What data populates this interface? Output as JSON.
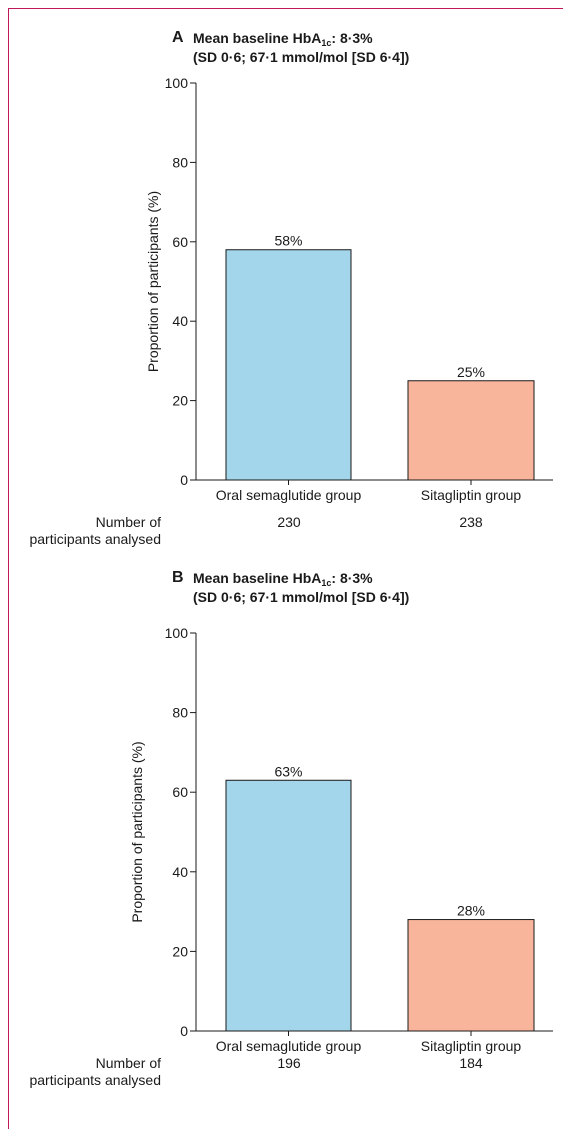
{
  "chart_data": [
    {
      "type": "bar",
      "panel_letter": "A",
      "title_prefix": "Mean baseline HbA",
      "title_sub": "1c",
      "title_suffix": ": 8·3%",
      "subtitle": "(SD 0·6; 67·1 mmol/mol [SD 6·4])",
      "ylabel": "Proportion of participants (%)",
      "ylim": [
        0,
        100
      ],
      "yticks": [
        0,
        20,
        40,
        60,
        80,
        100
      ],
      "categories": [
        "Oral semaglutide group",
        "Sitagliptin group"
      ],
      "values": [
        58,
        25
      ],
      "data_labels": [
        "58%",
        "25%"
      ],
      "colors": [
        "#a3d6ea",
        "#f9b59c"
      ],
      "n_label_line1": "Number of",
      "n_label_line2": "participants analysed",
      "n_values": [
        "230",
        "238"
      ]
    },
    {
      "type": "bar",
      "panel_letter": "B",
      "title_prefix": "Mean baseline HbA",
      "title_sub": "1c",
      "title_suffix": ": 8·3%",
      "subtitle": "(SD 0·6; 67·1 mmol/mol [SD 6·4])",
      "ylabel": "Proportion of participants (%)",
      "ylim": [
        0,
        100
      ],
      "yticks": [
        0,
        20,
        40,
        60,
        80,
        100
      ],
      "categories": [
        "Oral semaglutide group",
        "Sitagliptin group"
      ],
      "values": [
        63,
        28
      ],
      "data_labels": [
        "63%",
        "28%"
      ],
      "colors": [
        "#a3d6ea",
        "#f9b59c"
      ],
      "n_label_line1": "Number of",
      "n_label_line2": "participants analysed",
      "n_values": [
        "196",
        "184"
      ]
    }
  ]
}
